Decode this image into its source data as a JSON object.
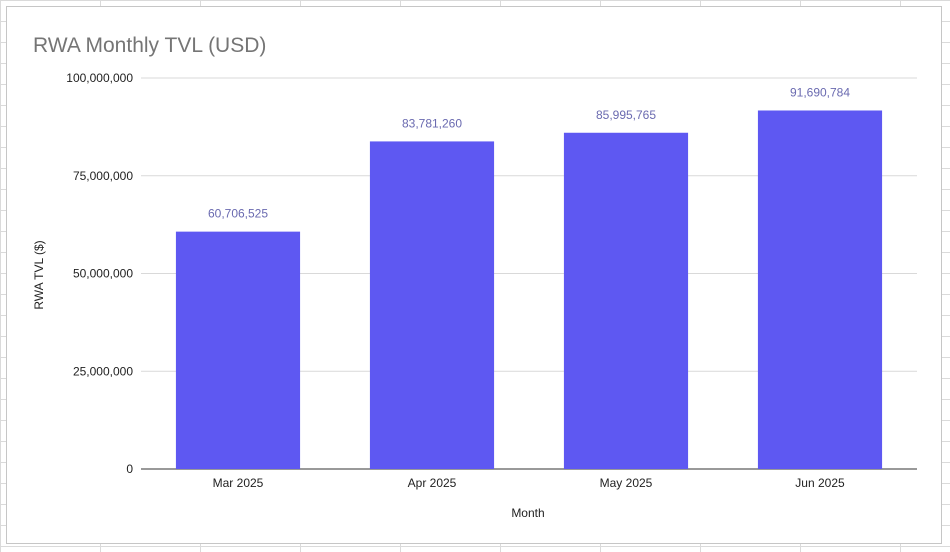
{
  "chart_data": {
    "type": "bar",
    "title": "RWA Monthly TVL (USD)",
    "xlabel": "Month",
    "ylabel": "RWA TVL ($)",
    "categories": [
      "Mar 2025",
      "Apr 2025",
      "May 2025",
      "Jun 2025"
    ],
    "values": [
      60706525,
      83781260,
      85995765,
      91690784
    ],
    "data_labels": [
      "60,706,525",
      "83,781,260",
      "85,995,765",
      "91,690,784"
    ],
    "ylim": [
      0,
      100000000
    ],
    "yticks": [
      0,
      25000000,
      50000000,
      75000000,
      100000000
    ],
    "ytick_labels": [
      "0",
      "25,000,000",
      "50,000,000",
      "75,000,000",
      "100,000,000"
    ],
    "grid": true,
    "legend": "none",
    "colors": {
      "bar": "#5e58f2",
      "data_label": "#6a6ab0",
      "title": "#757575"
    }
  }
}
